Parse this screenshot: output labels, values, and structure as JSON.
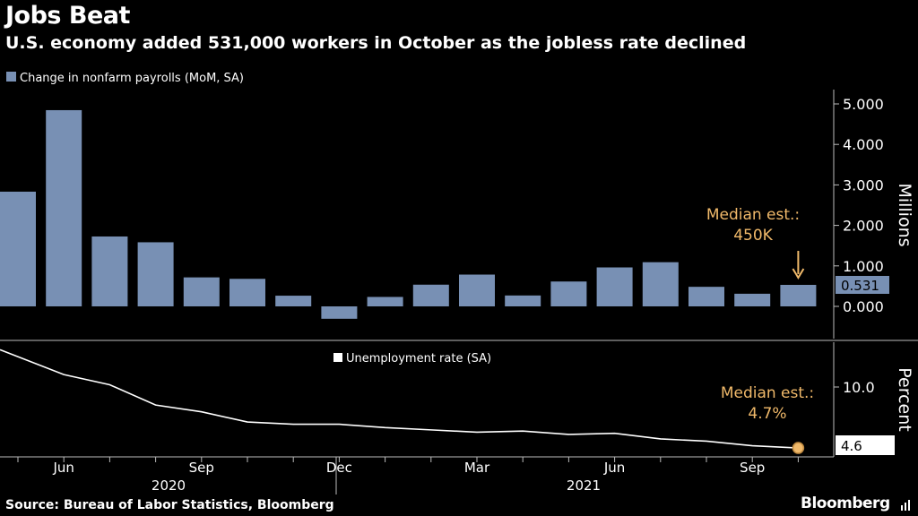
{
  "header": {
    "title": "Jobs Beat",
    "subtitle": "U.S. economy added 531,000 workers in October as the jobless rate declined"
  },
  "footer": {
    "source": "Source: Bureau of Labor Statistics, Bloomberg",
    "brand": "Bloomberg"
  },
  "colors": {
    "background": "#000000",
    "bar": "#7890b4",
    "line": "#ffffff",
    "annotation": "#f0b96a",
    "axis": "#bbbbbb"
  },
  "chart_data": [
    {
      "type": "bar",
      "legend": "Change in nonfarm payrolls (MoM, SA)",
      "legend_position": "top-left",
      "unit_label": "Millions",
      "categories": [
        "2020-05",
        "2020-06",
        "2020-07",
        "2020-08",
        "2020-09",
        "2020-10",
        "2020-11",
        "2020-12",
        "2021-01",
        "2021-02",
        "2021-03",
        "2021-04",
        "2021-05",
        "2021-06",
        "2021-07",
        "2021-08",
        "2021-09",
        "2021-10"
      ],
      "values": [
        2.833,
        4.846,
        1.726,
        1.583,
        0.716,
        0.68,
        0.264,
        -0.306,
        0.233,
        0.536,
        0.785,
        0.269,
        0.614,
        0.962,
        1.091,
        0.483,
        0.312,
        0.531
      ],
      "y_ticks": [
        "0.000",
        "1.000",
        "2.000",
        "3.000",
        "4.000",
        "5.000"
      ],
      "ylim": [
        -0.9,
        5.4
      ],
      "last_value_label": "0.531",
      "annotation": {
        "line1": "Median est.:",
        "line2": "450K",
        "target_category": "2021-10"
      },
      "grid": false
    },
    {
      "type": "line",
      "legend": "Unemployment rate (SA)",
      "legend_position": "top-center",
      "unit_label": "Percent",
      "categories": [
        "2020-05",
        "2020-06",
        "2020-07",
        "2020-08",
        "2020-09",
        "2020-10",
        "2020-11",
        "2020-12",
        "2021-01",
        "2021-02",
        "2021-03",
        "2021-04",
        "2021-05",
        "2021-06",
        "2021-07",
        "2021-08",
        "2021-09",
        "2021-10"
      ],
      "values": [
        13.3,
        11.1,
        10.2,
        8.4,
        7.8,
        6.9,
        6.7,
        6.7,
        6.4,
        6.2,
        6.0,
        6.1,
        5.8,
        5.9,
        5.4,
        5.2,
        4.8,
        4.6
      ],
      "y_ticks": [
        "10.0"
      ],
      "ylim": [
        3.8,
        14.5
      ],
      "last_value_label": "4.6",
      "annotation": {
        "line1": "Median est.:",
        "line2": "4.7%"
      },
      "grid": false
    }
  ],
  "x_axis": {
    "month_labels": [
      "Jun",
      "Sep",
      "Dec",
      "Mar",
      "Jun",
      "Sep"
    ],
    "year_labels": [
      "2020",
      "2021"
    ]
  }
}
